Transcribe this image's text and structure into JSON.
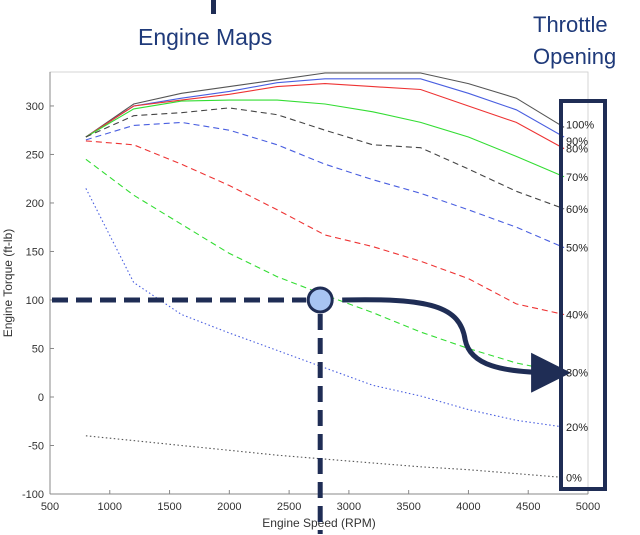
{
  "header": {
    "title": "Engine Maps",
    "throttle_line1": "Throttle",
    "throttle_line2": "Opening"
  },
  "chart_data": {
    "type": "line",
    "xlabel": "Engine Speed (RPM)",
    "ylabel": "Engine Torque (ft-lb)",
    "xlim": [
      500,
      5000
    ],
    "ylim": [
      -100,
      335
    ],
    "xticks": [
      500,
      1000,
      1500,
      2000,
      2500,
      3000,
      3500,
      4000,
      4500,
      5000
    ],
    "yticks": [
      -100,
      -50,
      0,
      50,
      100,
      150,
      200,
      250,
      300
    ],
    "grid": false,
    "x": [
      800,
      1200,
      1600,
      2000,
      2400,
      2800,
      3200,
      3600,
      4000,
      4400,
      4800
    ],
    "series": [
      {
        "name": "100%",
        "color": "#555555",
        "dash": "solid",
        "values": [
          268,
          302,
          313,
          320,
          327,
          334,
          334,
          334,
          323,
          308,
          278
        ]
      },
      {
        "name": "90%",
        "color": "#4a5fe0",
        "dash": "solid",
        "values": [
          268,
          300,
          308,
          315,
          324,
          328,
          328,
          328,
          313,
          296,
          268
        ]
      },
      {
        "name": "80%",
        "color": "#ee3333",
        "dash": "solid",
        "values": [
          268,
          300,
          306,
          312,
          320,
          323,
          320,
          317,
          300,
          283,
          256
        ]
      },
      {
        "name": "70%",
        "color": "#33dd33",
        "dash": "solid",
        "values": [
          268,
          297,
          305,
          306,
          306,
          302,
          294,
          283,
          268,
          248,
          227
        ]
      },
      {
        "name": "60%",
        "color": "#444444",
        "dash": "dashed",
        "values": [
          268,
          290,
          293,
          298,
          291,
          275,
          260,
          257,
          235,
          212,
          194
        ]
      },
      {
        "name": "50%",
        "color": "#4a5fe0",
        "dash": "dashed",
        "values": [
          265,
          280,
          283,
          275,
          260,
          240,
          224,
          210,
          193,
          175,
          154
        ]
      },
      {
        "name": "40%",
        "color": "#ee3333",
        "dash": "dashed",
        "values": [
          264,
          260,
          240,
          218,
          193,
          167,
          155,
          140,
          122,
          96,
          85
        ]
      },
      {
        "name": "30%",
        "color": "#33dd33",
        "dash": "dashed",
        "values": [
          245,
          208,
          178,
          148,
          124,
          105,
          87,
          67,
          50,
          35,
          25
        ]
      },
      {
        "name": "20%",
        "color": "#4a5fe0",
        "dash": "dotted",
        "values": [
          215,
          118,
          85,
          66,
          48,
          30,
          12,
          1,
          -13,
          -24,
          -31
        ]
      },
      {
        "name": "0%",
        "color": "#555555",
        "dash": "dotted",
        "values": [
          -40,
          -45,
          -50,
          -55,
          -60,
          -64,
          -68,
          -72,
          -75,
          -79,
          -83
        ]
      }
    ],
    "annotation": {
      "operating_point": {
        "x": 2760,
        "y": 100
      }
    }
  }
}
